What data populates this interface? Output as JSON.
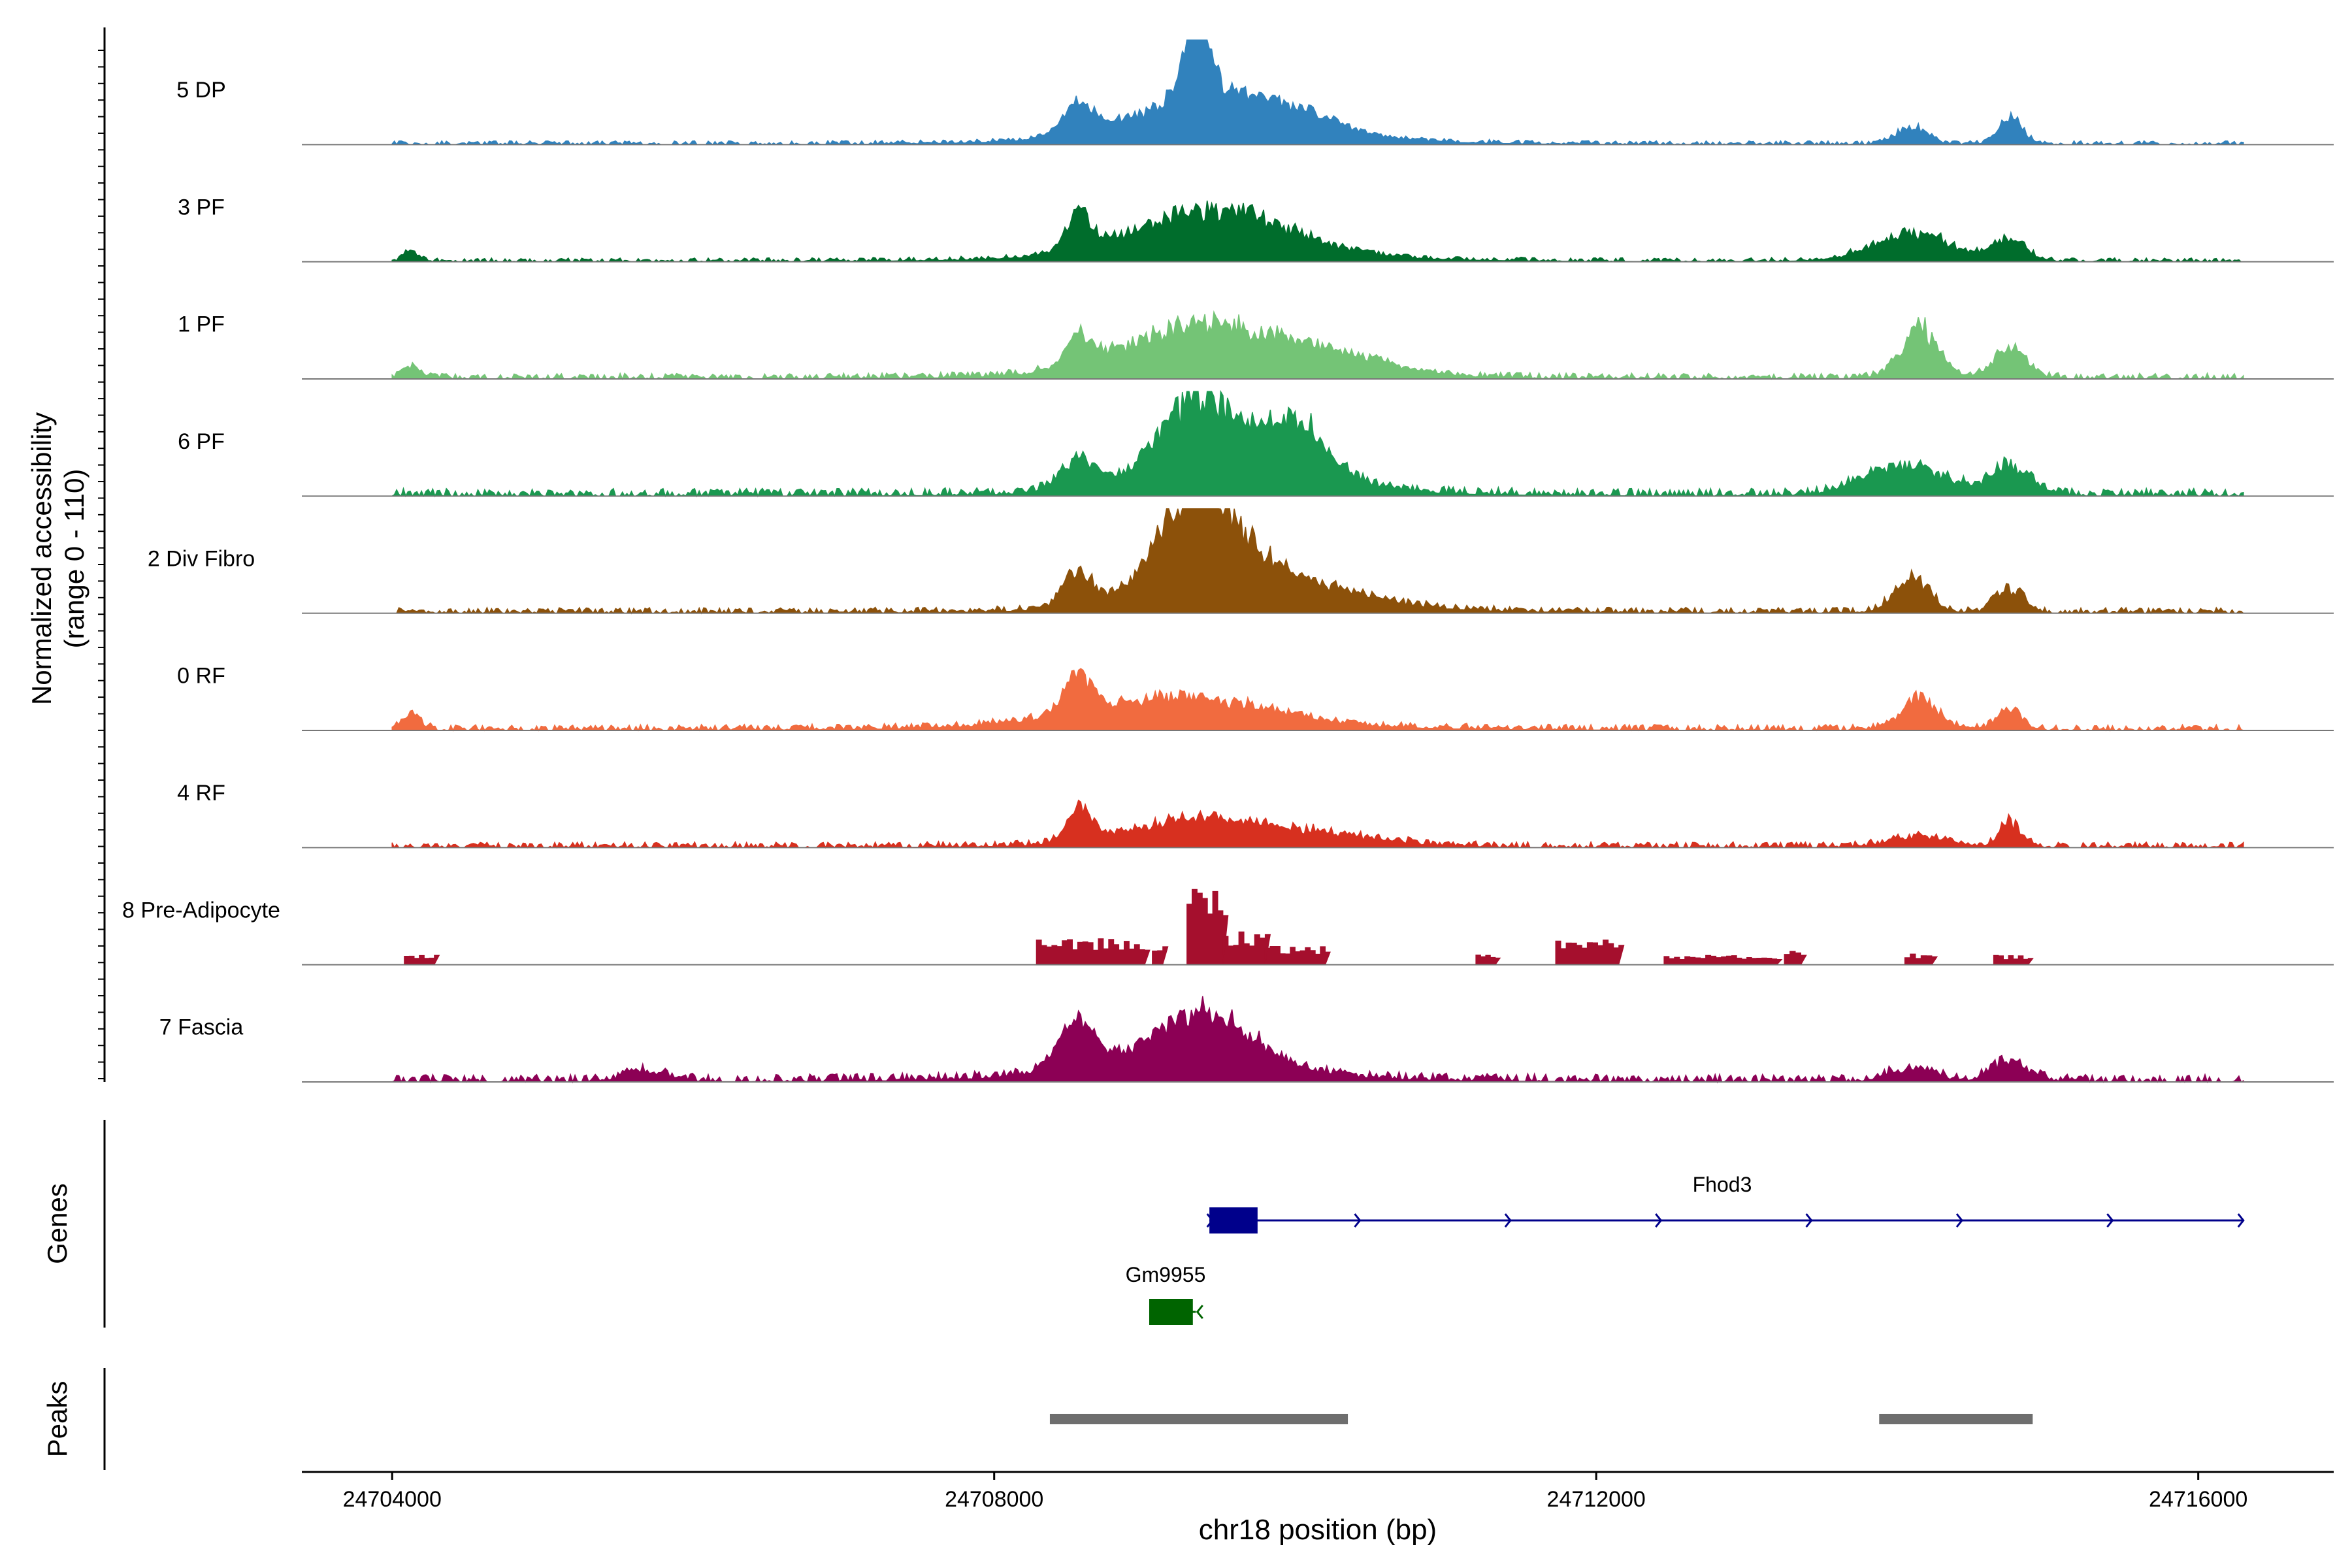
{
  "chart_data": {
    "type": "area",
    "title": "",
    "xlabel": "chr18 position (bp)",
    "ylabel": [
      "Normalized accessibility",
      "(range 0 - 110)"
    ],
    "yrange": [
      0,
      110
    ],
    "xlim": [
      24703400,
      24716900
    ],
    "x_ticks": [
      24704000,
      24708000,
      24712000,
      24716000
    ],
    "x_tick_labels": [
      "24704000",
      "24708000",
      "24712000",
      "24716000"
    ],
    "track_range": [
      24704000,
      24716300
    ],
    "tracks": [
      {
        "name": "5 DP",
        "color": "#3182bd",
        "base": 2,
        "peaks": [
          [
            24708550,
            100,
            28,
            15
          ],
          [
            24709400,
            450,
            40,
            40
          ],
          [
            24709350,
            80,
            100,
            22
          ],
          [
            24710000,
            300,
            15,
            20
          ],
          [
            24714100,
            100,
            18,
            0
          ],
          [
            24714750,
            80,
            28,
            0
          ]
        ]
      },
      {
        "name": "3 PF",
        "color": "#006d2c",
        "base": 2,
        "peaks": [
          [
            24704130,
            50,
            10,
            0
          ],
          [
            24708560,
            80,
            38,
            0
          ],
          [
            24709450,
            500,
            48,
            35
          ],
          [
            24714100,
            250,
            28,
            10
          ],
          [
            24714750,
            100,
            22,
            0
          ]
        ]
      },
      {
        "name": "1 PF",
        "color": "#74c476",
        "base": 3,
        "peaks": [
          [
            24704130,
            60,
            12,
            0
          ],
          [
            24708560,
            80,
            32,
            8
          ],
          [
            24709400,
            500,
            52,
            25
          ],
          [
            24710300,
            400,
            15,
            0
          ],
          [
            24714150,
            120,
            48,
            15
          ],
          [
            24714750,
            110,
            28,
            5
          ]
        ]
      },
      {
        "name": "6 PF",
        "color": "#1a9850",
        "base": 4,
        "peaks": [
          [
            24708560,
            120,
            30,
            10
          ],
          [
            24709350,
            250,
            75,
            30
          ],
          [
            24710000,
            200,
            50,
            15
          ],
          [
            24709700,
            500,
            22,
            25
          ],
          [
            24714050,
            250,
            30,
            10
          ],
          [
            24714750,
            120,
            30,
            5
          ]
        ]
      },
      {
        "name": "2 Div Fibro",
        "color": "#8c510a",
        "base": 3,
        "peaks": [
          [
            24708560,
            90,
            40,
            10
          ],
          [
            24709350,
            250,
            110,
            20
          ],
          [
            24709800,
            500,
            32,
            35
          ],
          [
            24714100,
            110,
            35,
            8
          ],
          [
            24714750,
            90,
            25,
            0
          ]
        ]
      },
      {
        "name": "0 RF",
        "color": "#f16b3f",
        "base": 3,
        "peaks": [
          [
            24704130,
            60,
            15,
            0
          ],
          [
            24708560,
            80,
            40,
            5
          ],
          [
            24709200,
            600,
            30,
            25
          ],
          [
            24714150,
            120,
            30,
            10
          ],
          [
            24714750,
            80,
            22,
            0
          ]
        ]
      },
      {
        "name": "4 RF",
        "color": "#d7301f",
        "base": 3,
        "peaks": [
          [
            24708560,
            80,
            35,
            5
          ],
          [
            24709300,
            400,
            22,
            20
          ],
          [
            24710000,
            500,
            12,
            0
          ],
          [
            24714150,
            200,
            10,
            0
          ],
          [
            24714750,
            70,
            25,
            0
          ]
        ]
      },
      {
        "name": "8 Pre-Adipocyte",
        "color": "#a50f2d",
        "base": 0,
        "blocks": [
          [
            24704080,
            24704280,
            12
          ],
          [
            24708280,
            24709000,
            28
          ],
          [
            24709050,
            24709120,
            20
          ],
          [
            24709280,
            24709520,
            85
          ],
          [
            24709520,
            24709800,
            35
          ],
          [
            24709800,
            24710200,
            20
          ],
          [
            24711200,
            24711330,
            12
          ],
          [
            24711730,
            24712150,
            30
          ],
          [
            24712450,
            24712900,
            10
          ],
          [
            24712900,
            24713200,
            10
          ],
          [
            24713250,
            24713360,
            15
          ],
          [
            24714050,
            24714230,
            12
          ],
          [
            24714640,
            24714870,
            10
          ]
        ]
      },
      {
        "name": "7 Fascia",
        "color": "#8c0055",
        "base": 4,
        "peaks": [
          [
            24708550,
            120,
            45,
            12
          ],
          [
            24709400,
            300,
            50,
            25
          ],
          [
            24709200,
            600,
            15,
            20
          ],
          [
            24705700,
            150,
            10,
            0
          ],
          [
            24714100,
            150,
            12,
            0
          ],
          [
            24714750,
            120,
            20,
            0
          ]
        ]
      }
    ],
    "genes": [
      {
        "name": "Fhod3",
        "color": "#00008b",
        "start": 24709430,
        "end": 24716300,
        "strand": "+",
        "exon": [
          24709430,
          24709750
        ],
        "arrows": [
          24709450,
          24710430,
          24711430,
          24712430,
          24713430,
          24714430,
          24715430,
          24716300
        ]
      },
      {
        "name": "Gm9955",
        "color": "#006400",
        "start": 24709030,
        "end": 24709340,
        "strand": "-",
        "exon": [
          24709030,
          24709320
        ],
        "arrows": [
          24709350
        ]
      }
    ],
    "peaks_track": [
      [
        24708370,
        24710350
      ],
      [
        24713880,
        24714900
      ]
    ],
    "panel_labels": {
      "genes": "Genes",
      "peaks": "Peaks"
    }
  }
}
